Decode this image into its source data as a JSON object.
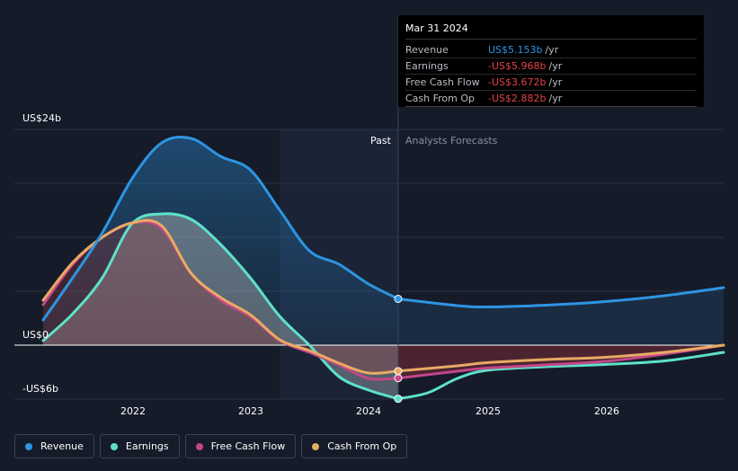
{
  "chart_data": {
    "type": "line",
    "title": "",
    "y_unit": "US$",
    "ylim": [
      -6,
      24
    ],
    "xlim": [
      2021.25,
      2027.0
    ],
    "y_tick_labels": [
      {
        "value": 24,
        "label": "US$24b"
      },
      {
        "value": 0,
        "label": "US$0"
      },
      {
        "value": -6,
        "label": "-US$6b"
      }
    ],
    "x_tick_labels": [
      {
        "value": 2022,
        "label": "2022"
      },
      {
        "value": 2023,
        "label": "2023"
      },
      {
        "value": 2024,
        "label": "2024"
      },
      {
        "value": 2025,
        "label": "2025"
      },
      {
        "value": 2026,
        "label": "2026"
      }
    ],
    "past_start": 2023.25,
    "forecast_start": 2024.25,
    "past_label": "Past",
    "forecast_label": "Analysts Forecasts",
    "series": [
      {
        "name": "Revenue",
        "color": "#2d95e3",
        "x": [
          2021.25,
          2021.5,
          2021.75,
          2022.0,
          2022.25,
          2022.5,
          2022.75,
          2023.0,
          2023.25,
          2023.5,
          2023.75,
          2024.0,
          2024.25
        ],
        "values": [
          2.8,
          7.5,
          12.5,
          18.5,
          22.5,
          23.0,
          21.0,
          19.5,
          15.0,
          10.5,
          9.0,
          6.8,
          5.153
        ],
        "forecast_x": [
          2024.25,
          2024.75,
          2025.0,
          2025.5,
          2026.0,
          2026.5,
          2027.0
        ],
        "forecast_values": [
          5.153,
          4.4,
          4.25,
          4.45,
          4.85,
          5.5,
          6.4
        ]
      },
      {
        "name": "Earnings",
        "color": "#5ee1c9",
        "x": [
          2021.25,
          2021.5,
          2021.75,
          2022.0,
          2022.25,
          2022.5,
          2022.75,
          2023.0,
          2023.25,
          2023.5,
          2023.75,
          2024.0,
          2024.25
        ],
        "values": [
          0.5,
          3.5,
          7.5,
          13.5,
          14.6,
          14.0,
          11.2,
          7.5,
          3.2,
          0.0,
          -3.5,
          -5.0,
          -5.968
        ],
        "forecast_x": [
          2024.25,
          2024.5,
          2024.75,
          2025.0,
          2025.5,
          2026.0,
          2026.5,
          2027.0
        ],
        "forecast_values": [
          -5.968,
          -5.3,
          -3.7,
          -2.8,
          -2.4,
          -2.15,
          -1.75,
          -0.8
        ]
      },
      {
        "name": "Free Cash Flow",
        "color": "#c2478a",
        "x": [
          2021.25,
          2021.5,
          2021.75,
          2022.0,
          2022.25,
          2022.5,
          2022.75,
          2023.0,
          2023.25,
          2023.5,
          2023.75,
          2024.0,
          2024.25
        ],
        "values": [
          4.5,
          9.0,
          12.0,
          13.6,
          13.0,
          8.0,
          5.0,
          3.2,
          0.5,
          -0.8,
          -2.2,
          -3.7,
          -3.672
        ],
        "forecast_x": [
          2024.25,
          2024.75,
          2025.0,
          2025.5,
          2026.0,
          2026.5,
          2027.0
        ],
        "forecast_values": [
          -3.672,
          -2.9,
          -2.55,
          -2.2,
          -1.8,
          -1.0,
          0.0
        ]
      },
      {
        "name": "Cash From Op",
        "color": "#e8aa63",
        "x": [
          2021.25,
          2021.5,
          2021.75,
          2022.0,
          2022.25,
          2022.5,
          2022.75,
          2023.0,
          2023.25,
          2023.5,
          2023.75,
          2024.0,
          2024.25
        ],
        "values": [
          5.0,
          9.2,
          12.0,
          13.6,
          13.3,
          8.0,
          5.3,
          3.4,
          0.6,
          -0.6,
          -2.0,
          -3.1,
          -2.882
        ],
        "forecast_x": [
          2024.25,
          2024.75,
          2025.0,
          2025.5,
          2026.0,
          2026.5,
          2027.0
        ],
        "forecast_values": [
          -2.882,
          -2.3,
          -1.95,
          -1.6,
          -1.35,
          -0.8,
          0.0
        ]
      }
    ]
  },
  "tooltip": {
    "date": "Mar 31 2024",
    "rows": [
      {
        "name": "Revenue",
        "value": "US$5.153b",
        "unit": "/yr",
        "color": "#2d95e3"
      },
      {
        "name": "Earnings",
        "value": "-US$5.968b",
        "unit": "/yr",
        "color": "#e0434a"
      },
      {
        "name": "Free Cash Flow",
        "value": "-US$3.672b",
        "unit": "/yr",
        "color": "#e0434a"
      },
      {
        "name": "Cash From Op",
        "value": "-US$2.882b",
        "unit": "/yr",
        "color": "#e0434a"
      }
    ]
  },
  "legend": [
    {
      "label": "Revenue",
      "color": "#2d95e3"
    },
    {
      "label": "Earnings",
      "color": "#5ee1c9"
    },
    {
      "label": "Free Cash Flow",
      "color": "#c2478a"
    },
    {
      "label": "Cash From Op",
      "color": "#e8aa63"
    }
  ]
}
